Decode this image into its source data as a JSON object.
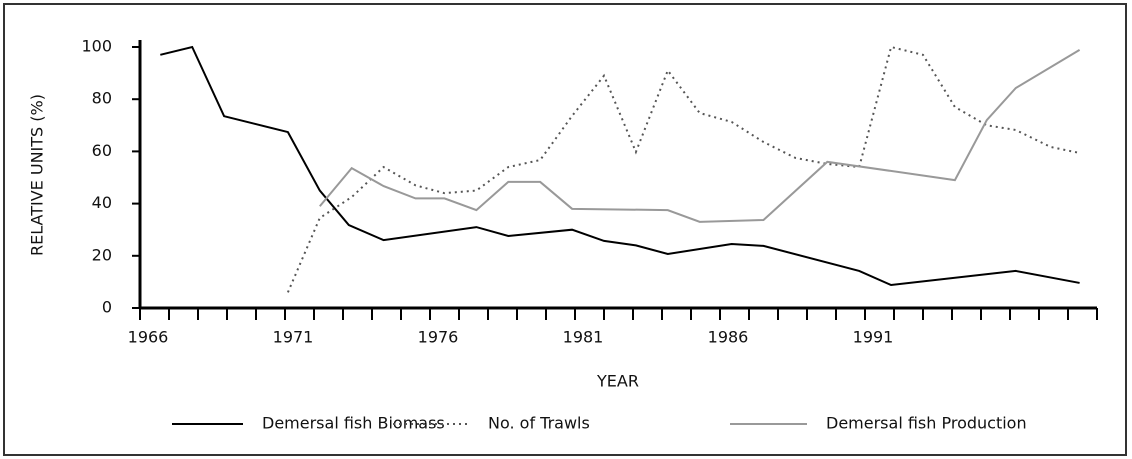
{
  "chart_data": {
    "type": "line",
    "x_label": "YEAR",
    "y_label": "RELATIVE UNITS (%)",
    "xlim": [
      1966,
      1999
    ],
    "ylim": [
      0,
      100
    ],
    "xticks": [
      1966,
      1971,
      1976,
      1981,
      1986,
      1991
    ],
    "xminor_ticks": [
      1967,
      1968,
      1969,
      1970,
      1972,
      1973,
      1974,
      1975,
      1977,
      1978,
      1979,
      1980,
      1982,
      1983,
      1984,
      1985,
      1987,
      1988,
      1989,
      1990,
      1992,
      1993,
      1994,
      1995,
      1996,
      1997,
      1998,
      1999
    ],
    "yticks": [
      0,
      20,
      40,
      60,
      80,
      100
    ],
    "grid": false,
    "series": [
      {
        "name": "Demersal fish Biomass",
        "color": "#000000",
        "dash": "solid",
        "x": [
          1966.7,
          1967.8,
          1968.9,
          1971.1,
          1972.2,
          1973.2,
          1974.4,
          1977.6,
          1978.7,
          1980.9,
          1982.0,
          1983.1,
          1984.2,
          1986.4,
          1987.5,
          1990.8,
          1991.9,
          1996.2,
          1998.4
        ],
        "values": [
          97,
          100,
          73.5,
          67.4,
          45,
          31.8,
          26,
          31,
          27.6,
          30,
          25.7,
          24,
          20.7,
          24.5,
          23.8,
          14.2,
          8.8,
          14.2,
          9.6
        ]
      },
      {
        "name": "No. of Trawls",
        "color": "#555555",
        "dash": "dotted",
        "x": [
          1971.1,
          1972.2,
          1973.3,
          1974.4,
          1975.5,
          1976.5,
          1977.6,
          1978.7,
          1979.8,
          1980.9,
          1982.0,
          1983.1,
          1984.2,
          1985.3,
          1986.4,
          1987.5,
          1988.6,
          1989.7,
          1990.8,
          1991.9,
          1993.0,
          1994.1,
          1995.2,
          1996.2,
          1997.4,
          1998.4
        ],
        "values": [
          6,
          34.5,
          42.5,
          54,
          47,
          44,
          45,
          54,
          56.7,
          73.6,
          89,
          59.8,
          91,
          74.7,
          71.3,
          63.6,
          57.5,
          55.2,
          54,
          100,
          97,
          77,
          70,
          68.2,
          61.7,
          59.4
        ]
      },
      {
        "name": "Demersal fish Production",
        "color": "#999999",
        "dash": "solid",
        "x": [
          1972.2,
          1973.3,
          1974.4,
          1975.5,
          1976.5,
          1977.6,
          1978.7,
          1979.8,
          1980.9,
          1984.2,
          1985.3,
          1987.5,
          1989.7,
          1994.1,
          1995.2,
          1996.2,
          1998.4
        ],
        "values": [
          39,
          53.6,
          46.7,
          42,
          42,
          37.5,
          48.3,
          48.3,
          38,
          37.5,
          33,
          33.7,
          56,
          49,
          72,
          84.3,
          98.9
        ]
      }
    ]
  }
}
